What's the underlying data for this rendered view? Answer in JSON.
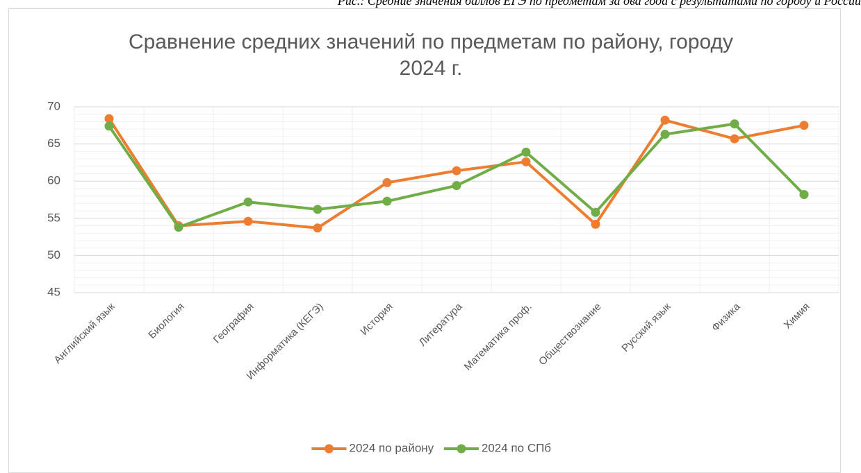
{
  "caption": "Рис.: Средние значения баллов ЕГЭ по предметам за два года с результатами по городу и России",
  "chart_data": {
    "type": "line",
    "title": "Сравнение средних значений по предметам по району, городу 2024  г.",
    "categories": [
      "Английский язык",
      "Биология",
      "География",
      "Информатика (КЕГЭ)",
      "История",
      "Литература",
      "Математика проф.",
      "Обществознание",
      "Русский язык",
      "Физика",
      "Химия"
    ],
    "series": [
      {
        "name": "2024 по району",
        "color": "#ed7d31",
        "values": [
          68.4,
          54.0,
          54.6,
          53.7,
          59.8,
          61.4,
          62.6,
          54.2,
          68.2,
          65.7,
          67.5
        ]
      },
      {
        "name": "2024 по СПб",
        "color": "#70ad47",
        "values": [
          67.4,
          53.8,
          57.2,
          56.2,
          57.3,
          59.4,
          63.9,
          55.8,
          66.3,
          67.7,
          58.2
        ]
      }
    ],
    "ylim": [
      45,
      70
    ],
    "yticks": [
      45,
      50,
      55,
      60,
      65,
      70
    ],
    "grid": true,
    "legend": "bottom"
  }
}
